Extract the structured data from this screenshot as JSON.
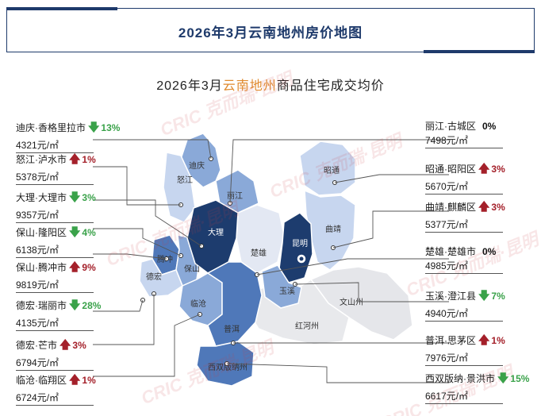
{
  "header": {
    "title": "2026年3月云南地州房价地图"
  },
  "subtitle": {
    "prefix": "2026年3月",
    "highlight": "云南地州",
    "suffix": "商品住宅成交均价"
  },
  "watermark": "CRIC 克而瑞·昆明",
  "colors": {
    "dark": "#1d3c6e",
    "mid": "#4f78b9",
    "light": "#8aa9d8",
    "pale": "#c7d6ef",
    "gray": "#e5e6ea",
    "up": "#a4202a",
    "down": "#3aa24a",
    "highlight": "#e08a2e"
  },
  "map_labels": [
    "迪庆",
    "怒江",
    "丽江",
    "昭通",
    "大理",
    "昆明",
    "曲靖",
    "楚雄",
    "保山",
    "德宏",
    "腾冲",
    "临沧",
    "玉溪",
    "文山州",
    "普洱",
    "红河州",
    "西双版纳州"
  ],
  "left_callouts": [
    {
      "name": "迪庆·香格里拉市",
      "trend": "down",
      "pct": "13%",
      "price": "4321元/㎡"
    },
    {
      "name": "怒江·泸水市",
      "trend": "up",
      "pct": "1%",
      "price": "5378元/㎡"
    },
    {
      "name": "大理·大理市",
      "trend": "down",
      "pct": "3%",
      "price": "9357元/㎡"
    },
    {
      "name": "保山·隆阳区",
      "trend": "down",
      "pct": "4%",
      "price": "6138元/㎡"
    },
    {
      "name": "保山·腾冲市",
      "trend": "up",
      "pct": "9%",
      "price": "9819元/㎡"
    },
    {
      "name": "德宏·瑞丽市",
      "trend": "down",
      "pct": "28%",
      "price": "4135元/㎡"
    },
    {
      "name": "德宏·芒市",
      "trend": "up",
      "pct": "3%",
      "price": "6794元/㎡"
    },
    {
      "name": "临沧·临翔区",
      "trend": "up",
      "pct": "1%",
      "price": "6724元/㎡"
    }
  ],
  "right_callouts": [
    {
      "name": "丽江·古城区",
      "trend": "flat",
      "pct": "0%",
      "price": "7498元/㎡"
    },
    {
      "name": "昭通·昭阳区",
      "trend": "up",
      "pct": "3%",
      "price": "5670元/㎡"
    },
    {
      "name": "曲靖·麒麟区",
      "trend": "up",
      "pct": "3%",
      "price": "5377元/㎡"
    },
    {
      "name": "楚雄·楚雄市",
      "trend": "flat",
      "pct": "0%",
      "price": "4985元/㎡"
    },
    {
      "name": "玉溪·澄江县",
      "trend": "down",
      "pct": "7%",
      "price": "4940元/㎡"
    },
    {
      "name": "普洱·思茅区",
      "trend": "up",
      "pct": "1%",
      "price": "7976元/㎡"
    },
    {
      "name": "西双版纳·景洪市",
      "trend": "down",
      "pct": "15%",
      "price": "6617元/㎡"
    }
  ]
}
